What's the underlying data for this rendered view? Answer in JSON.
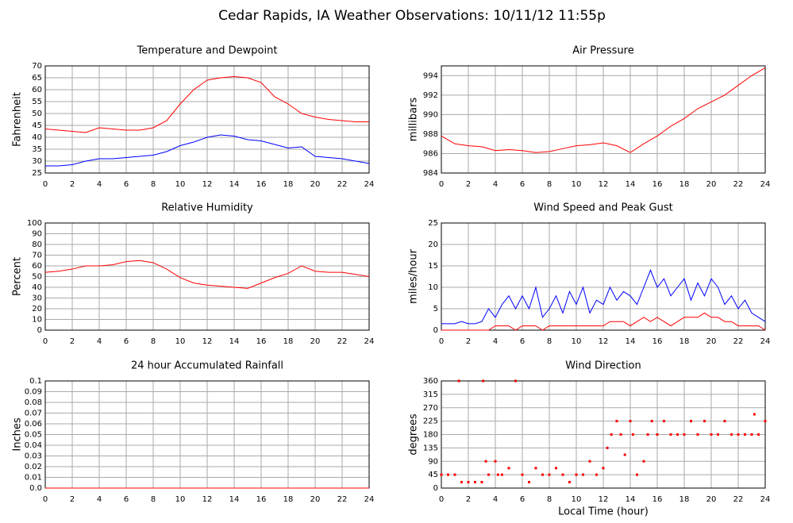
{
  "title": "Cedar Rapids, IA Weather Observations: 10/11/12 11:55p",
  "xlabel": "Local Time (hour)",
  "chart_data": [
    {
      "type": "line",
      "title": "Temperature and Dewpoint",
      "ylabel": "Fahrenheit",
      "x": [
        0,
        1,
        2,
        3,
        4,
        5,
        6,
        7,
        8,
        9,
        10,
        11,
        12,
        13,
        14,
        15,
        16,
        17,
        18,
        19,
        20,
        21,
        22,
        23,
        24
      ],
      "series": [
        {
          "color": "#ff0000",
          "values": [
            43.5,
            43,
            42.5,
            42,
            44,
            43.5,
            43,
            43,
            44,
            47,
            54,
            60,
            64,
            65,
            65.5,
            65,
            63,
            57,
            54,
            50,
            48.5,
            47.5,
            47,
            46.5,
            46.5
          ]
        },
        {
          "color": "#0000ff",
          "values": [
            28,
            28,
            28.5,
            30,
            31,
            31,
            31.5,
            32,
            32.5,
            34,
            36.5,
            38,
            40,
            41,
            40.5,
            39,
            38.5,
            37,
            35.5,
            36,
            32,
            31.5,
            31,
            30,
            29
          ]
        }
      ],
      "xlim": [
        0,
        24
      ],
      "xticks": [
        0,
        2,
        4,
        6,
        8,
        10,
        12,
        14,
        16,
        18,
        20,
        22,
        24
      ],
      "ylim": [
        25,
        70
      ],
      "yticks": [
        25,
        30,
        35,
        40,
        45,
        50,
        55,
        60,
        65,
        70
      ],
      "grid": true
    },
    {
      "type": "line",
      "title": "Air Pressure",
      "ylabel": "millibars",
      "x": [
        0,
        1,
        2,
        3,
        4,
        5,
        6,
        7,
        8,
        9,
        10,
        11,
        12,
        13,
        14,
        15,
        16,
        17,
        18,
        19,
        20,
        21,
        22,
        23,
        24
      ],
      "series": [
        {
          "color": "#ff0000",
          "values": [
            987.8,
            987,
            986.8,
            986.7,
            986.3,
            986.4,
            986.3,
            986.1,
            986.2,
            986.5,
            986.8,
            986.9,
            987.1,
            986.8,
            986.1,
            987,
            987.8,
            988.8,
            989.6,
            990.6,
            991.3,
            992,
            993,
            994,
            994.8
          ]
        }
      ],
      "xlim": [
        0,
        24
      ],
      "xticks": [
        0,
        2,
        4,
        6,
        8,
        10,
        12,
        14,
        16,
        18,
        20,
        22,
        24
      ],
      "ylim": [
        984,
        995
      ],
      "yticks": [
        984,
        986,
        988,
        990,
        992,
        994
      ],
      "grid": true
    },
    {
      "type": "line",
      "title": "Relative Humidity",
      "ylabel": "Percent",
      "x": [
        0,
        1,
        2,
        3,
        4,
        5,
        6,
        7,
        8,
        9,
        10,
        11,
        12,
        13,
        14,
        15,
        16,
        17,
        18,
        19,
        20,
        21,
        22,
        23,
        24
      ],
      "series": [
        {
          "color": "#ff0000",
          "values": [
            54,
            55,
            57,
            60,
            60,
            61,
            64,
            65,
            63,
            57,
            49,
            44,
            42,
            41,
            40,
            39,
            44,
            49,
            53,
            60,
            55,
            54,
            54,
            52,
            50
          ]
        }
      ],
      "xlim": [
        0,
        24
      ],
      "xticks": [
        0,
        2,
        4,
        6,
        8,
        10,
        12,
        14,
        16,
        18,
        20,
        22,
        24
      ],
      "ylim": [
        0,
        100
      ],
      "yticks": [
        0,
        10,
        20,
        30,
        40,
        50,
        60,
        70,
        80,
        90,
        100
      ],
      "grid": true
    },
    {
      "type": "line",
      "title": "Wind Speed and Peak Gust",
      "ylabel": "miles/hour",
      "x": [
        0,
        0.5,
        1,
        1.5,
        2,
        2.5,
        3,
        3.5,
        4,
        4.5,
        5,
        5.5,
        6,
        6.5,
        7,
        7.5,
        8,
        8.5,
        9,
        9.5,
        10,
        10.5,
        11,
        11.5,
        12,
        12.5,
        13,
        13.5,
        14,
        14.5,
        15,
        15.5,
        16,
        16.5,
        17,
        17.5,
        18,
        18.5,
        19,
        19.5,
        20,
        20.5,
        21,
        21.5,
        22,
        22.5,
        23,
        23.5,
        24
      ],
      "series": [
        {
          "color": "#0000ff",
          "values": [
            1.5,
            1.5,
            1.5,
            2,
            1.5,
            1.5,
            2,
            5,
            3,
            6,
            8,
            5,
            8,
            5,
            10,
            3,
            5,
            8,
            4,
            9,
            6,
            10,
            4,
            7,
            6,
            10,
            7,
            9,
            8,
            6,
            10,
            14,
            10,
            12,
            8,
            10,
            12,
            7,
            11,
            8,
            12,
            10,
            6,
            8,
            5,
            7,
            4,
            3,
            2
          ]
        },
        {
          "color": "#ff0000",
          "values": [
            0,
            0,
            0,
            0,
            0,
            0,
            0,
            0,
            1,
            1,
            1,
            0,
            1,
            1,
            1,
            0,
            1,
            1,
            1,
            1,
            1,
            1,
            1,
            1,
            1,
            2,
            2,
            2,
            1,
            2,
            3,
            2,
            3,
            2,
            1,
            2,
            3,
            3,
            3,
            4,
            3,
            3,
            2,
            2,
            1,
            1,
            1,
            1,
            0
          ]
        }
      ],
      "xlim": [
        0,
        24
      ],
      "xticks": [
        0,
        2,
        4,
        6,
        8,
        10,
        12,
        14,
        16,
        18,
        20,
        22,
        24
      ],
      "ylim": [
        0,
        25
      ],
      "yticks": [
        0,
        5,
        10,
        15,
        20,
        25
      ],
      "grid": true
    },
    {
      "type": "line",
      "title": "24 hour Accumulated Rainfall",
      "ylabel": "Inches",
      "x": [
        0,
        24
      ],
      "series": [
        {
          "color": "#ff0000",
          "values": [
            0,
            0
          ]
        }
      ],
      "xlim": [
        0,
        24
      ],
      "xticks": [
        0,
        2,
        4,
        6,
        8,
        10,
        12,
        14,
        16,
        18,
        20,
        22,
        24
      ],
      "ylim": [
        0,
        0.1
      ],
      "yticks": [
        {
          "value": 0,
          "label": "0.0"
        },
        0.01,
        0.02,
        0.03,
        0.04,
        0.05,
        0.06,
        0.07,
        0.08,
        0.09,
        0.1
      ],
      "grid": true
    },
    {
      "type": "scatter",
      "title": "Wind Direction",
      "ylabel": "degrees",
      "x": [
        0,
        0.5,
        1,
        1.3,
        1.5,
        2,
        2.5,
        3,
        3.1,
        3.3,
        3.5,
        4,
        4.2,
        4.5,
        5,
        5.5,
        6,
        6.5,
        7,
        7.5,
        8,
        8.5,
        9,
        9.5,
        10,
        10.5,
        11,
        11.5,
        12,
        12.3,
        12.6,
        13,
        13.3,
        13.6,
        14,
        14.2,
        14.5,
        15,
        15.3,
        15.6,
        16,
        16.5,
        17,
        17.5,
        18,
        18.5,
        19,
        19.5,
        20,
        20.5,
        21,
        21.5,
        22,
        22.5,
        23,
        23.2,
        23.5,
        24
      ],
      "series": [
        {
          "color": "#ff0000",
          "values": [
            45,
            45,
            45,
            360,
            20,
            20,
            20,
            20,
            360,
            90,
            45,
            90,
            45,
            45,
            67,
            360,
            45,
            20,
            67,
            45,
            45,
            67,
            45,
            20,
            45,
            45,
            90,
            45,
            67,
            135,
            180,
            225,
            180,
            112,
            225,
            180,
            45,
            90,
            180,
            225,
            180,
            225,
            180,
            180,
            180,
            225,
            180,
            225,
            180,
            180,
            225,
            180,
            180,
            180,
            180,
            248,
            180,
            225
          ]
        }
      ],
      "xlim": [
        0,
        24
      ],
      "xticks": [
        0,
        2,
        4,
        6,
        8,
        10,
        12,
        14,
        16,
        18,
        20,
        22,
        24
      ],
      "ylim": [
        0,
        360
      ],
      "yticks": [
        0,
        45,
        90,
        135,
        180,
        225,
        270,
        315,
        360
      ],
      "grid": true
    }
  ]
}
